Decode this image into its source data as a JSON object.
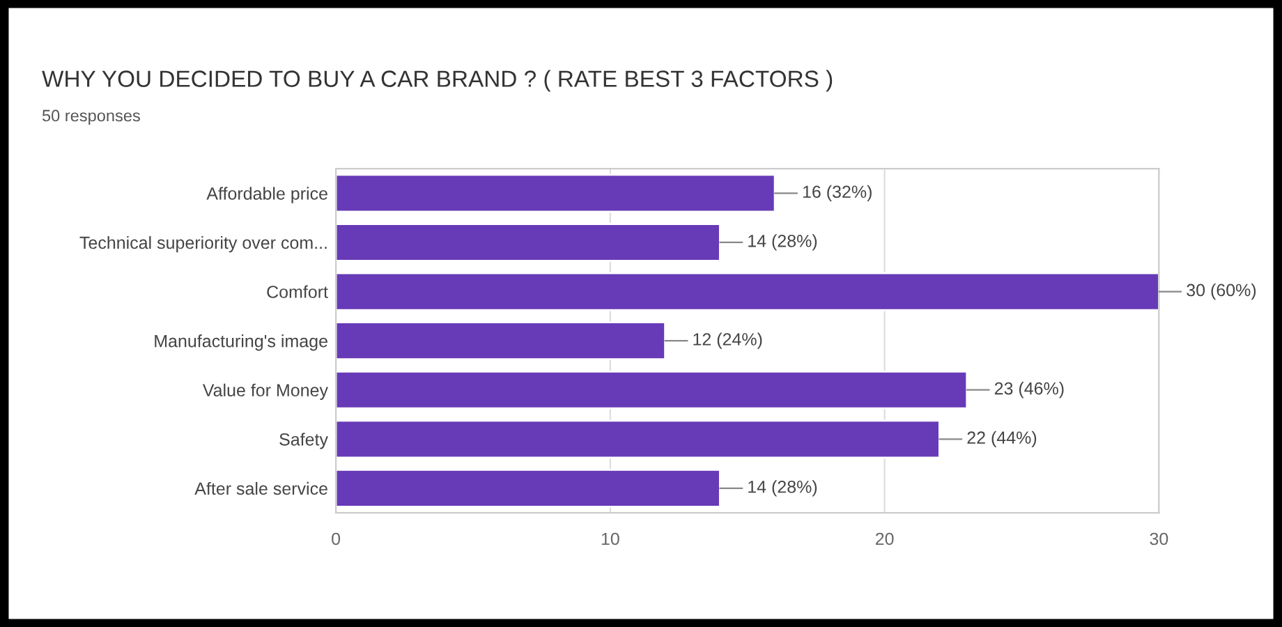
{
  "chart_data": {
    "type": "bar",
    "orientation": "horizontal",
    "title": "WHY YOU DECIDED TO BUY A CAR BRAND ? ( RATE BEST 3 FACTORS )",
    "subtitle": "50 responses",
    "categories": [
      "Affordable price",
      "Technical superiority over com...",
      "Comfort",
      "Manufacturing's image",
      "Value for Money",
      "Safety",
      "After sale service"
    ],
    "values": [
      16,
      14,
      30,
      12,
      23,
      22,
      14
    ],
    "value_labels": [
      "16 (32%)",
      "14 (28%)",
      "30 (60%)",
      "12 (24%)",
      "23 (46%)",
      "22 (44%)",
      "14 (28%)"
    ],
    "color": "#673ab7",
    "xlim": [
      0,
      30
    ],
    "xticks": [
      0,
      10,
      20,
      30
    ],
    "grid": "x"
  }
}
